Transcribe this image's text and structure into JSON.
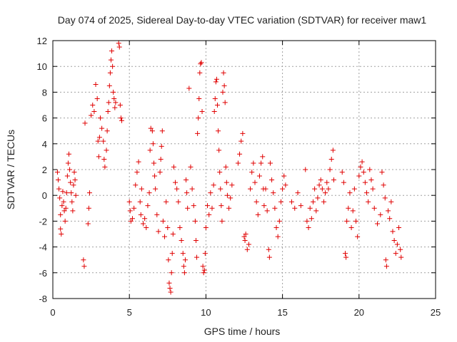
{
  "chart_data": {
    "type": "scatter",
    "title": "Day 074 of 2025, Sidereal Day-to-day VTEC variation (SDTVAR) for receiver maw1",
    "xlabel": "GPS time / hours",
    "ylabel": "SDTVAR / TECUs",
    "xlim": [
      0,
      25
    ],
    "ylim": [
      -8,
      12
    ],
    "xticks": [
      0,
      5,
      10,
      15,
      20,
      25
    ],
    "yticks": [
      -8,
      -6,
      -4,
      -2,
      0,
      2,
      4,
      6,
      8,
      10,
      12
    ],
    "grid": true,
    "marker": "+",
    "color": "#e00000",
    "series": [
      {
        "name": "SDTVAR",
        "points": [
          [
            0.3,
            1.8
          ],
          [
            0.35,
            1.2
          ],
          [
            0.4,
            0.5
          ],
          [
            0.45,
            -0.2
          ],
          [
            0.5,
            -1.5
          ],
          [
            0.5,
            -2.6
          ],
          [
            0.55,
            -3.0
          ],
          [
            0.6,
            -0.8
          ],
          [
            0.65,
            0.3
          ],
          [
            0.7,
            -0.5
          ],
          [
            0.75,
            -1.2
          ],
          [
            0.8,
            -2.0
          ],
          [
            0.85,
            -1.0
          ],
          [
            0.9,
            0.2
          ],
          [
            0.95,
            1.5
          ],
          [
            1.0,
            2.5
          ],
          [
            1.05,
            3.2
          ],
          [
            1.1,
            2.0
          ],
          [
            1.15,
            1.0
          ],
          [
            1.2,
            0.2
          ],
          [
            1.25,
            -0.5
          ],
          [
            1.3,
            -1.2
          ],
          [
            1.35,
            0.8
          ],
          [
            1.4,
            1.8
          ],
          [
            1.45,
            1.2
          ],
          [
            1.5,
            0.0
          ],
          [
            2.0,
            -5.0
          ],
          [
            2.05,
            -5.5
          ],
          [
            2.1,
            5.6
          ],
          [
            2.3,
            -2.2
          ],
          [
            2.35,
            -1.0
          ],
          [
            2.4,
            0.2
          ],
          [
            2.5,
            6.2
          ],
          [
            2.6,
            7.0
          ],
          [
            2.7,
            6.5
          ],
          [
            2.8,
            8.6
          ],
          [
            2.9,
            7.5
          ],
          [
            2.95,
            4.2
          ],
          [
            3.0,
            3.0
          ],
          [
            3.05,
            4.5
          ],
          [
            3.1,
            6.0
          ],
          [
            3.2,
            5.2
          ],
          [
            3.3,
            4.2
          ],
          [
            3.35,
            2.8
          ],
          [
            3.4,
            2.2
          ],
          [
            3.5,
            3.5
          ],
          [
            3.55,
            5.0
          ],
          [
            3.6,
            6.5
          ],
          [
            3.65,
            7.2
          ],
          [
            3.7,
            8.5
          ],
          [
            3.75,
            9.5
          ],
          [
            3.8,
            10.5
          ],
          [
            3.85,
            11.2
          ],
          [
            3.9,
            10.0
          ],
          [
            3.95,
            8.0
          ],
          [
            4.0,
            7.5
          ],
          [
            4.05,
            6.8
          ],
          [
            4.1,
            7.2
          ],
          [
            4.3,
            11.8
          ],
          [
            4.35,
            11.5
          ],
          [
            4.4,
            7.0
          ],
          [
            4.45,
            6.0
          ],
          [
            4.5,
            5.8
          ],
          [
            5.0,
            -0.5
          ],
          [
            5.05,
            -1.2
          ],
          [
            5.1,
            -2.0
          ],
          [
            5.2,
            -1.8
          ],
          [
            5.3,
            -1.0
          ],
          [
            5.4,
            0.8
          ],
          [
            5.5,
            1.8
          ],
          [
            5.6,
            2.6
          ],
          [
            5.7,
            -0.5
          ],
          [
            5.75,
            -1.5
          ],
          [
            5.8,
            0.5
          ],
          [
            5.9,
            -2.2
          ],
          [
            6.0,
            -1.8
          ],
          [
            6.1,
            -2.5
          ],
          [
            6.2,
            -0.8
          ],
          [
            6.3,
            0.2
          ],
          [
            6.35,
            3.5
          ],
          [
            6.4,
            5.2
          ],
          [
            6.5,
            5.0
          ],
          [
            6.55,
            4.0
          ],
          [
            6.6,
            2.5
          ],
          [
            6.65,
            1.5
          ],
          [
            6.7,
            0.5
          ],
          [
            6.8,
            -1.5
          ],
          [
            6.9,
            -2.8
          ],
          [
            7.0,
            1.8
          ],
          [
            7.05,
            2.8
          ],
          [
            7.1,
            3.8
          ],
          [
            7.15,
            5.0
          ],
          [
            7.2,
            -2.0
          ],
          [
            7.3,
            -3.2
          ],
          [
            7.4,
            -0.5
          ],
          [
            7.5,
            -2.5
          ],
          [
            7.55,
            -5.0
          ],
          [
            7.6,
            -6.8
          ],
          [
            7.65,
            -7.2
          ],
          [
            7.7,
            -7.5
          ],
          [
            7.75,
            -6.0
          ],
          [
            7.8,
            -4.5
          ],
          [
            7.85,
            -3.0
          ],
          [
            7.9,
            2.2
          ],
          [
            8.0,
            1.0
          ],
          [
            8.1,
            0.5
          ],
          [
            8.2,
            -0.5
          ],
          [
            8.3,
            -2.5
          ],
          [
            8.4,
            -3.5
          ],
          [
            8.5,
            -4.5
          ],
          [
            8.55,
            -5.5
          ],
          [
            8.6,
            -6.0
          ],
          [
            8.65,
            -5.0
          ],
          [
            8.7,
            1.2
          ],
          [
            8.75,
            0.2
          ],
          [
            8.8,
            -1.0
          ],
          [
            8.9,
            8.3
          ],
          [
            9.0,
            2.2
          ],
          [
            9.1,
            0.5
          ],
          [
            9.2,
            -0.8
          ],
          [
            9.3,
            -2.0
          ],
          [
            9.35,
            -3.5
          ],
          [
            9.4,
            -4.8
          ],
          [
            9.45,
            4.8
          ],
          [
            9.5,
            6.0
          ],
          [
            9.55,
            7.5
          ],
          [
            9.6,
            9.5
          ],
          [
            9.65,
            10.2
          ],
          [
            9.7,
            10.3
          ],
          [
            9.75,
            6.5
          ],
          [
            9.8,
            -5.5
          ],
          [
            9.85,
            -6.0
          ],
          [
            9.9,
            -5.8
          ],
          [
            9.95,
            -4.5
          ],
          [
            10.0,
            -2.5
          ],
          [
            10.1,
            -0.8
          ],
          [
            10.2,
            -1.5
          ],
          [
            10.3,
            0.2
          ],
          [
            10.4,
            -1.0
          ],
          [
            10.5,
            0.8
          ],
          [
            10.55,
            6.5
          ],
          [
            10.6,
            7.5
          ],
          [
            10.65,
            8.8
          ],
          [
            10.7,
            9.0
          ],
          [
            10.75,
            7.0
          ],
          [
            10.8,
            5.0
          ],
          [
            10.85,
            3.5
          ],
          [
            10.9,
            1.8
          ],
          [
            10.95,
            0.5
          ],
          [
            11.0,
            -0.8
          ],
          [
            11.05,
            -2.0
          ],
          [
            11.1,
            8.0
          ],
          [
            11.15,
            9.5
          ],
          [
            11.2,
            8.5
          ],
          [
            11.25,
            7.2
          ],
          [
            11.3,
            2.2
          ],
          [
            11.35,
            1.0
          ],
          [
            11.4,
            0.0
          ],
          [
            11.5,
            -1.0
          ],
          [
            11.6,
            -0.2
          ],
          [
            11.7,
            0.8
          ],
          [
            12.1,
            2.5
          ],
          [
            12.2,
            3.2
          ],
          [
            12.3,
            4.2
          ],
          [
            12.4,
            4.8
          ],
          [
            12.5,
            -3.2
          ],
          [
            12.55,
            -3.5
          ],
          [
            12.6,
            -3.0
          ],
          [
            12.7,
            -4.2
          ],
          [
            12.8,
            -3.8
          ],
          [
            12.9,
            0.5
          ],
          [
            13.0,
            1.8
          ],
          [
            13.1,
            2.5
          ],
          [
            13.2,
            1.0
          ],
          [
            13.3,
            -0.5
          ],
          [
            13.4,
            -1.5
          ],
          [
            13.5,
            1.5
          ],
          [
            13.6,
            2.5
          ],
          [
            13.7,
            3.0
          ],
          [
            13.75,
            0.5
          ],
          [
            13.8,
            -0.8
          ],
          [
            13.9,
            0.5
          ],
          [
            14.0,
            -1.2
          ],
          [
            14.1,
            -4.2
          ],
          [
            14.15,
            -4.8
          ],
          [
            14.2,
            2.5
          ],
          [
            14.3,
            1.2
          ],
          [
            14.4,
            0.2
          ],
          [
            14.5,
            -1.0
          ],
          [
            14.6,
            -2.5
          ],
          [
            14.7,
            -3.2
          ],
          [
            14.8,
            -2.0
          ],
          [
            14.9,
            -0.5
          ],
          [
            15.0,
            0.5
          ],
          [
            15.1,
            1.5
          ],
          [
            15.2,
            0.8
          ],
          [
            15.6,
            -0.5
          ],
          [
            15.8,
            -1.0
          ],
          [
            16.0,
            0.2
          ],
          [
            16.2,
            -0.8
          ],
          [
            16.5,
            2.0
          ],
          [
            16.6,
            -2.0
          ],
          [
            16.7,
            -2.5
          ],
          [
            16.8,
            -1.0
          ],
          [
            16.9,
            -1.8
          ],
          [
            17.0,
            -0.5
          ],
          [
            17.1,
            0.5
          ],
          [
            17.2,
            -1.2
          ],
          [
            17.3,
            -0.2
          ],
          [
            17.4,
            0.8
          ],
          [
            17.5,
            1.2
          ],
          [
            17.6,
            0.5
          ],
          [
            17.7,
            -0.5
          ],
          [
            17.8,
            0.2
          ],
          [
            17.9,
            1.0
          ],
          [
            18.0,
            0.5
          ],
          [
            18.1,
            2.0
          ],
          [
            18.2,
            2.8
          ],
          [
            18.3,
            3.5
          ],
          [
            18.35,
            1.2
          ],
          [
            18.9,
            1.8
          ],
          [
            19.0,
            1.0
          ],
          [
            19.1,
            -4.5
          ],
          [
            19.15,
            -4.8
          ],
          [
            19.2,
            -2.0
          ],
          [
            19.3,
            -1.0
          ],
          [
            19.4,
            0.2
          ],
          [
            19.5,
            -2.5
          ],
          [
            19.6,
            -1.2
          ],
          [
            19.7,
            0.5
          ],
          [
            19.8,
            -2.0
          ],
          [
            19.9,
            -3.2
          ],
          [
            20.0,
            1.5
          ],
          [
            20.1,
            2.2
          ],
          [
            20.2,
            2.6
          ],
          [
            20.3,
            1.8
          ],
          [
            20.4,
            1.0
          ],
          [
            20.5,
            0.2
          ],
          [
            20.6,
            -0.5
          ],
          [
            20.7,
            2.0
          ],
          [
            20.8,
            1.2
          ],
          [
            20.9,
            0.5
          ],
          [
            21.0,
            -1.0
          ],
          [
            21.2,
            -2.2
          ],
          [
            21.4,
            -1.5
          ],
          [
            21.5,
            1.8
          ],
          [
            21.6,
            0.8
          ],
          [
            21.7,
            -0.2
          ],
          [
            21.75,
            -5.0
          ],
          [
            21.8,
            -5.5
          ],
          [
            21.9,
            -1.2
          ],
          [
            22.0,
            -1.8
          ],
          [
            22.1,
            -0.5
          ],
          [
            22.2,
            -2.8
          ],
          [
            22.3,
            -3.5
          ],
          [
            22.4,
            -4.5
          ],
          [
            22.5,
            -3.8
          ],
          [
            22.6,
            -2.5
          ],
          [
            22.7,
            -4.2
          ],
          [
            22.75,
            -4.8
          ]
        ]
      }
    ]
  }
}
